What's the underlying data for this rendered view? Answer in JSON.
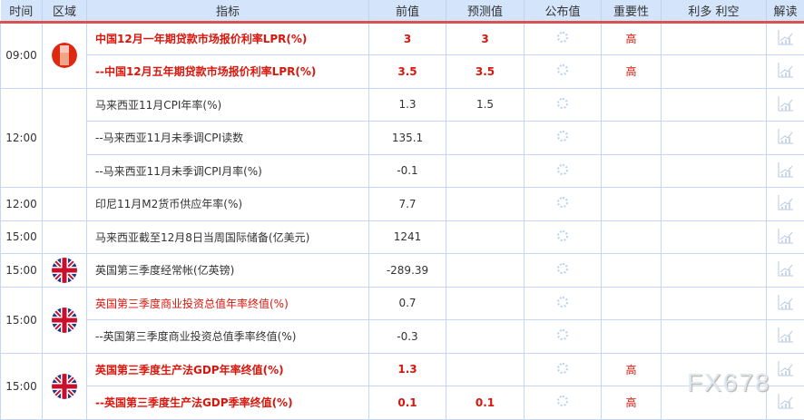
{
  "headers": {
    "time": "时间",
    "region": "区域",
    "indicator": "指标",
    "previous": "前值",
    "forecast": "预测值",
    "actual": "公布值",
    "importance": "重要性",
    "impact": "利多 利空",
    "analysis": "解读"
  },
  "colors": {
    "accent_red": "#d8160c",
    "header_bg": "#d3e4fb",
    "header_border": "#d9534f"
  },
  "rows": [
    {
      "time": "09:00",
      "flag": "china",
      "indicator": "中国12月一年期贷款市场报价利率LPR(%)",
      "previous": "3",
      "forecast": "3",
      "importance": "高",
      "style": "red-bold"
    },
    {
      "indicator": "--中国12月五年期贷款市场报价利率LPR(%)",
      "previous": "3.5",
      "forecast": "3.5",
      "importance": "高",
      "style": "red-bold"
    },
    {
      "time": "12:00",
      "indicator": "马来西亚11月CPI年率(%)",
      "previous": "1.3",
      "forecast": "1.5",
      "importance": "",
      "style": "normal"
    },
    {
      "indicator": "--马来西亚11月未季调CPI读数",
      "previous": "135.1",
      "forecast": "",
      "importance": "",
      "style": "normal"
    },
    {
      "indicator": "--马来西亚11月未季调CPI月率(%)",
      "previous": "-0.1",
      "forecast": "",
      "importance": "",
      "style": "normal"
    },
    {
      "time": "12:00",
      "indicator": "印尼11月M2货币供应年率(%)",
      "previous": "7.7",
      "forecast": "",
      "importance": "",
      "style": "normal"
    },
    {
      "time": "15:00",
      "indicator": "马来西亚截至12月8日当周国际储备(亿美元)",
      "previous": "1241",
      "forecast": "",
      "importance": "",
      "style": "normal"
    },
    {
      "time": "15:00",
      "flag": "uk",
      "indicator": "英国第三季度经常帐(亿英镑)",
      "previous": "-289.39",
      "forecast": "",
      "importance": "",
      "style": "normal"
    },
    {
      "time": "15:00",
      "flag": "uk",
      "indicator": "英国第三季度商业投资总值年率终值(%)",
      "previous": "0.7",
      "forecast": "",
      "importance": "",
      "style": "red"
    },
    {
      "indicator": "--英国第三季度商业投资总值季率终值(%)",
      "previous": "-0.3",
      "forecast": "",
      "importance": "",
      "style": "normal"
    },
    {
      "time": "15:00",
      "flag": "uk",
      "indicator": "英国第三季度生产法GDP年率终值(%)",
      "previous": "1.3",
      "forecast": "",
      "importance": "高",
      "style": "red-bold"
    },
    {
      "indicator": "--英国第三季度生产法GDP季率终值(%)",
      "previous": "0.1",
      "forecast": "0.1",
      "importance": "高",
      "style": "red-bold"
    }
  ],
  "groups": [
    [
      0,
      2
    ],
    [
      2,
      3
    ],
    [
      5,
      1
    ],
    [
      6,
      1
    ],
    [
      7,
      1
    ],
    [
      8,
      2
    ],
    [
      10,
      2
    ]
  ],
  "watermark": "FX678"
}
